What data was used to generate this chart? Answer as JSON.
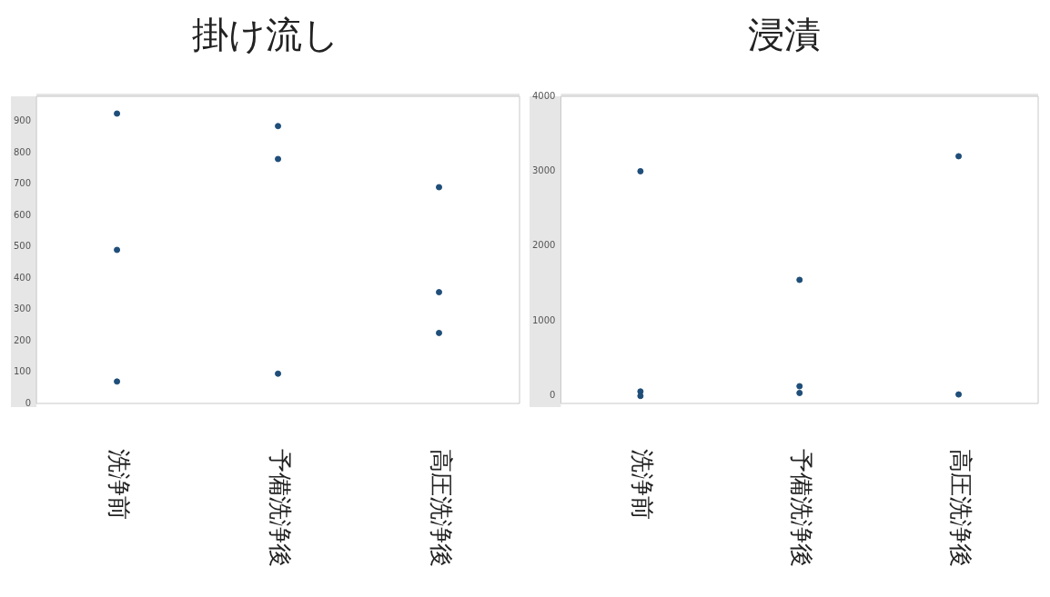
{
  "chart_data": [
    {
      "type": "scatter",
      "title": "掛け流し",
      "categories": [
        "洗浄前",
        "予備洗浄後",
        "高圧洗浄後"
      ],
      "series": [
        {
          "color": "#1f4e79",
          "x": [
            "洗浄前",
            "洗浄前",
            "洗浄前",
            "予備洗浄後",
            "予備洗浄後",
            "予備洗浄後",
            "高圧洗浄後",
            "高圧洗浄後",
            "高圧洗浄後"
          ],
          "values": [
            925,
            490,
            70,
            885,
            780,
            95,
            690,
            355,
            225
          ]
        }
      ],
      "ylim": [
        0,
        980
      ],
      "yticks": [
        0,
        100,
        200,
        300,
        400,
        500,
        600,
        700,
        800,
        900
      ],
      "grid": false,
      "legend": false,
      "marker": "circle"
    },
    {
      "type": "scatter",
      "title": "浸漬",
      "categories": [
        "洗浄前",
        "予備洗浄後",
        "高圧洗浄後"
      ],
      "series": [
        {
          "color": "#1f4e79",
          "x": [
            "洗浄前",
            "洗浄前",
            "洗浄前",
            "予備洗浄後",
            "予備洗浄後",
            "予備洗浄後",
            "高圧洗浄後",
            "高圧洗浄後"
          ],
          "values": [
            3000,
            60,
            0,
            1550,
            130,
            40,
            3200,
            20
          ]
        }
      ],
      "ylim": [
        -100,
        4000
      ],
      "yticks": [
        0,
        1000,
        2000,
        3000,
        4000
      ],
      "grid": false,
      "legend": false,
      "marker": "circle"
    }
  ]
}
